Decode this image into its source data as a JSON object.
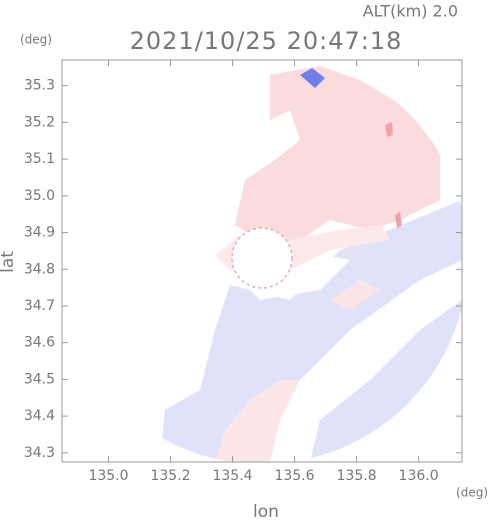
{
  "chart_data": {
    "type": "map",
    "title": "2021/10/25 20:47:18",
    "subtitle": "ALT(km) 2.0",
    "x_label": "lon",
    "y_label": "lat",
    "x_unit": "(deg)",
    "y_unit": "(deg)",
    "xlim": [
      134.85,
      136.14
    ],
    "ylim": [
      34.275,
      35.37
    ],
    "xticks": [
      {
        "value": 135.0,
        "label": "135.0"
      },
      135.2,
      135.4,
      135.6,
      135.8,
      {
        "value": 136.0,
        "label": "136.0"
      }
    ],
    "yticks": [
      34.3,
      34.4,
      34.5,
      34.6,
      34.7,
      34.8,
      34.9,
      {
        "value": 35.0,
        "label": "35.0"
      },
      35.1,
      35.2,
      35.3
    ]
  }
}
